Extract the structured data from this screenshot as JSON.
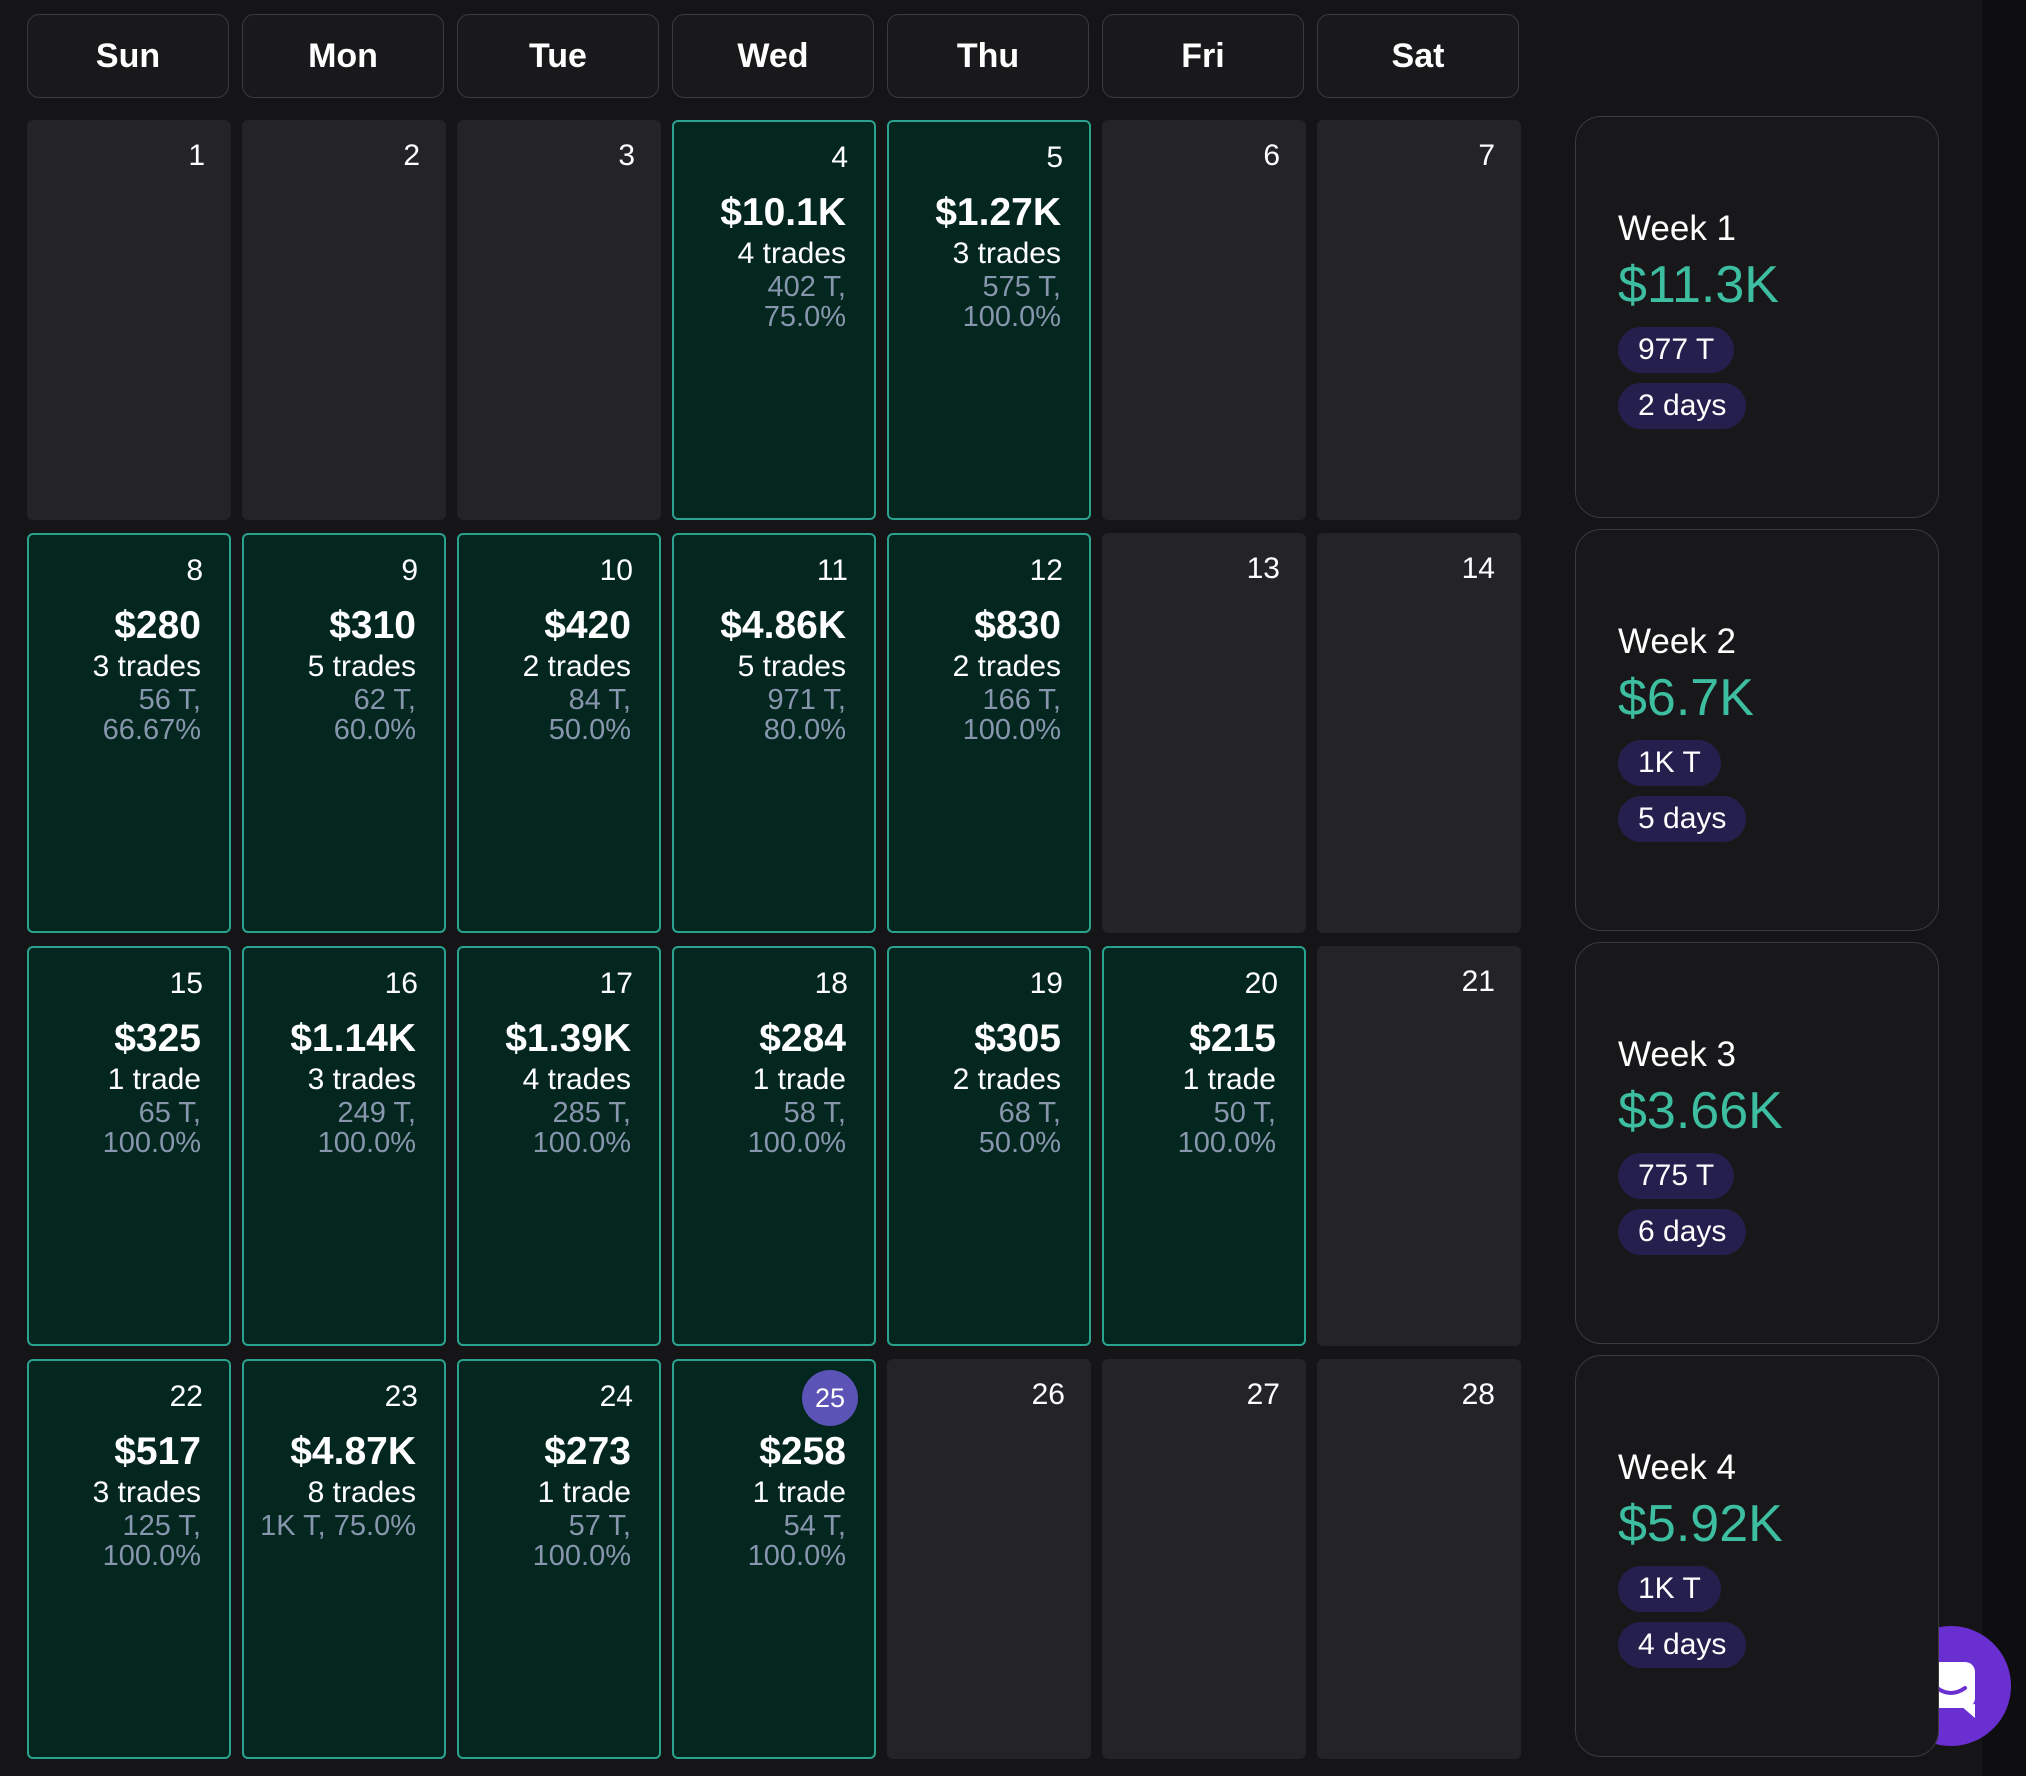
{
  "calendar": {
    "weekdays": [
      "Sun",
      "Mon",
      "Tue",
      "Wed",
      "Thu",
      "Fri",
      "Sat"
    ],
    "weeks": [
      {
        "days": [
          {
            "date": 1
          },
          {
            "date": 2
          },
          {
            "date": 3
          },
          {
            "date": 4,
            "amount": "$10.1K",
            "trades": "4 trades",
            "stats": [
              "402 T,",
              "75.0%"
            ]
          },
          {
            "date": 5,
            "amount": "$1.27K",
            "trades": "3 trades",
            "stats": [
              "575 T,",
              "100.0%"
            ]
          },
          {
            "date": 6
          },
          {
            "date": 7
          }
        ],
        "summary": {
          "label": "Week 1",
          "amount": "$11.3K",
          "ticks": "977 T",
          "days": "2 days"
        }
      },
      {
        "days": [
          {
            "date": 8,
            "amount": "$280",
            "trades": "3 trades",
            "stats": [
              "56 T,",
              "66.67%"
            ]
          },
          {
            "date": 9,
            "amount": "$310",
            "trades": "5 trades",
            "stats": [
              "62 T,",
              "60.0%"
            ]
          },
          {
            "date": 10,
            "amount": "$420",
            "trades": "2 trades",
            "stats": [
              "84 T,",
              "50.0%"
            ]
          },
          {
            "date": 11,
            "amount": "$4.86K",
            "trades": "5 trades",
            "stats": [
              "971 T,",
              "80.0%"
            ]
          },
          {
            "date": 12,
            "amount": "$830",
            "trades": "2 trades",
            "stats": [
              "166 T,",
              "100.0%"
            ]
          },
          {
            "date": 13
          },
          {
            "date": 14
          }
        ],
        "summary": {
          "label": "Week 2",
          "amount": "$6.7K",
          "ticks": "1K T",
          "days": "5 days"
        }
      },
      {
        "days": [
          {
            "date": 15,
            "amount": "$325",
            "trades": "1 trade",
            "stats": [
              "65 T,",
              "100.0%"
            ]
          },
          {
            "date": 16,
            "amount": "$1.14K",
            "trades": "3 trades",
            "stats": [
              "249 T,",
              "100.0%"
            ]
          },
          {
            "date": 17,
            "amount": "$1.39K",
            "trades": "4 trades",
            "stats": [
              "285 T,",
              "100.0%"
            ]
          },
          {
            "date": 18,
            "amount": "$284",
            "trades": "1 trade",
            "stats": [
              "58 T,",
              "100.0%"
            ]
          },
          {
            "date": 19,
            "amount": "$305",
            "trades": "2 trades",
            "stats": [
              "68 T,",
              "50.0%"
            ]
          },
          {
            "date": 20,
            "amount": "$215",
            "trades": "1 trade",
            "stats": [
              "50 T,",
              "100.0%"
            ]
          },
          {
            "date": 21
          }
        ],
        "summary": {
          "label": "Week 3",
          "amount": "$3.66K",
          "ticks": "775 T",
          "days": "6 days"
        }
      },
      {
        "days": [
          {
            "date": 22,
            "amount": "$517",
            "trades": "3 trades",
            "stats": [
              "125 T,",
              "100.0%"
            ]
          },
          {
            "date": 23,
            "amount": "$4.87K",
            "trades": "8 trades",
            "stats": [
              "1K T, 75.0%"
            ]
          },
          {
            "date": 24,
            "amount": "$273",
            "trades": "1 trade",
            "stats": [
              "57 T,",
              "100.0%"
            ]
          },
          {
            "date": 25,
            "amount": "$258",
            "trades": "1 trade",
            "stats": [
              "54 T,",
              "100.0%"
            ],
            "today": true
          },
          {
            "date": 26
          },
          {
            "date": 27
          },
          {
            "date": 28
          }
        ],
        "summary": {
          "label": "Week 4",
          "amount": "$5.92K",
          "ticks": "1K T",
          "days": "4 days"
        }
      }
    ]
  }
}
